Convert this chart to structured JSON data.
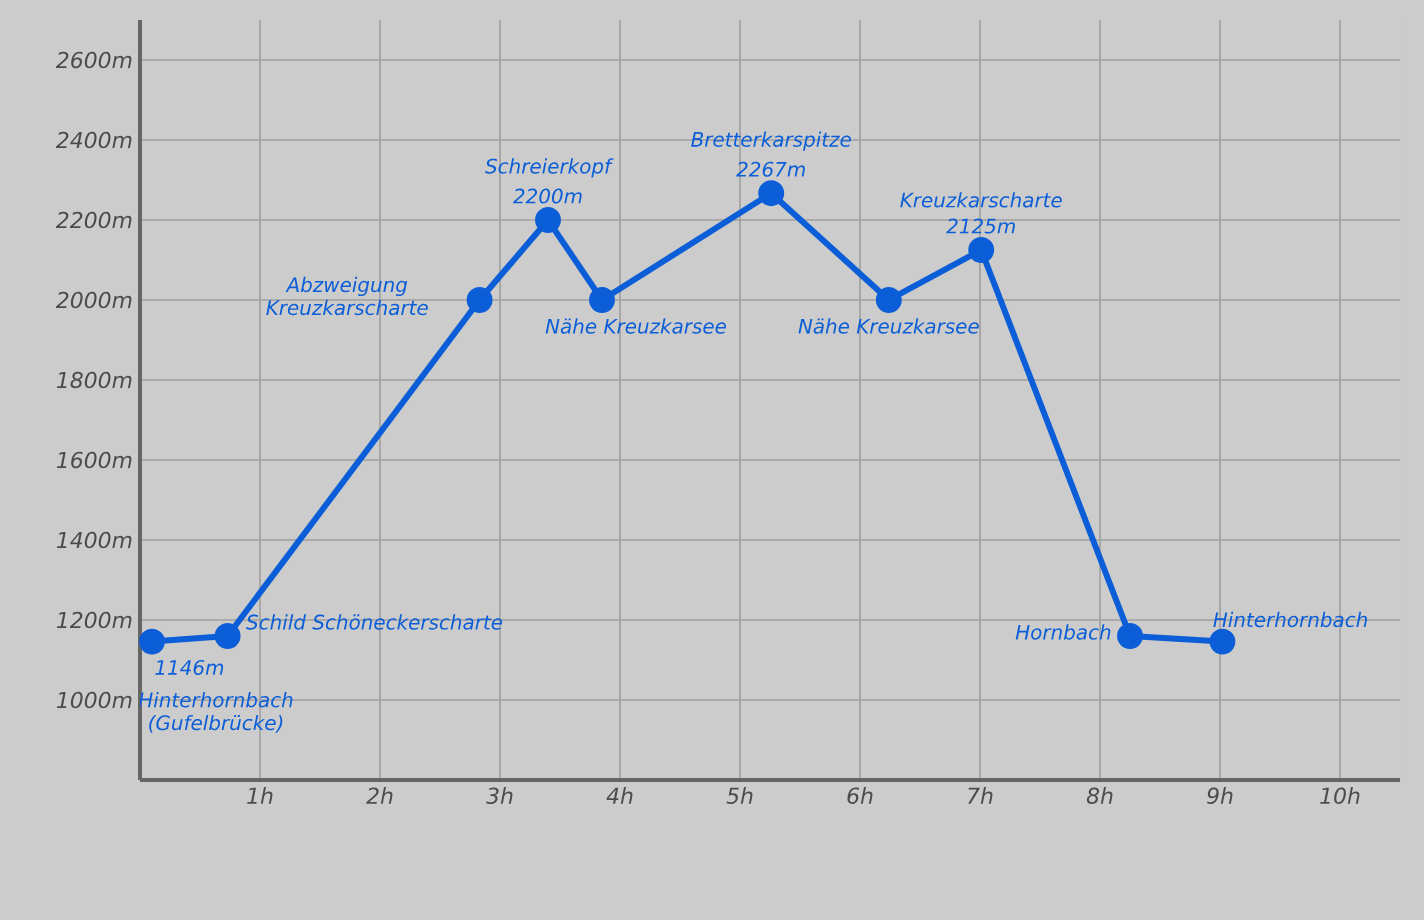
{
  "chart_data": {
    "type": "line",
    "x": [
      0.1,
      0.73,
      2.83,
      3.4,
      3.85,
      5.26,
      6.24,
      7.01,
      8.25,
      9.02
    ],
    "values": [
      1146,
      1160,
      2000,
      2200,
      2000,
      2267,
      2000,
      2125,
      1160,
      1146
    ],
    "color": "#0b5ed7",
    "marker": "circle",
    "line_style": "solid",
    "grid": true,
    "value_labels": [
      "1146m",
      null,
      null,
      "2200m",
      null,
      "2267m",
      null,
      "2125m",
      null,
      null
    ],
    "xlim": [
      0,
      10.5
    ],
    "ylim": [
      800,
      2700
    ],
    "xticks": [
      {
        "value": 1,
        "label": "1h"
      },
      {
        "value": 2,
        "label": "2h"
      },
      {
        "value": 3,
        "label": "3h"
      },
      {
        "value": 4,
        "label": "4h"
      },
      {
        "value": 5,
        "label": "5h"
      },
      {
        "value": 6,
        "label": "6h"
      },
      {
        "value": 7,
        "label": "7h"
      },
      {
        "value": 8,
        "label": "8h"
      },
      {
        "value": 9,
        "label": "9h"
      },
      {
        "value": 10,
        "label": "10h"
      }
    ],
    "yticks": [
      {
        "value": 1000,
        "label": "1000m"
      },
      {
        "value": 1200,
        "label": "1200m"
      },
      {
        "value": 1400,
        "label": "1400m"
      },
      {
        "value": 1600,
        "label": "1600m"
      },
      {
        "value": 1800,
        "label": "1800m"
      },
      {
        "value": 2000,
        "label": "2000m"
      },
      {
        "value": 2200,
        "label": "2200m"
      },
      {
        "value": 2400,
        "label": "2400m"
      },
      {
        "value": 2600,
        "label": "2600m"
      }
    ],
    "annotations": [
      {
        "text": "Hinterhornbach (Gufelbrücke)",
        "x": 0.1,
        "y": 1146
      },
      {
        "text": "Schild Schöneckerscharte",
        "x": 0.73,
        "y": 1160
      },
      {
        "text": "Abzweigung Kreuzkarscharte",
        "x": 2.83,
        "y": 2000
      },
      {
        "text": "Schreierkopf",
        "x": 3.4,
        "y": 2200
      },
      {
        "text": "Nähe Kreuzkarsee",
        "x": 3.85,
        "y": 2000
      },
      {
        "text": "Bretterkarspitze",
        "x": 5.26,
        "y": 2267
      },
      {
        "text": "Nähe Kreuzkarsee",
        "x": 6.24,
        "y": 2000
      },
      {
        "text": "Kreuzkarscharte",
        "x": 7.01,
        "y": 2125
      },
      {
        "text": "Hornbach",
        "x": 8.25,
        "y": 1160
      },
      {
        "text": "Hinterhornbach",
        "x": 9.02,
        "y": 1146
      }
    ]
  }
}
